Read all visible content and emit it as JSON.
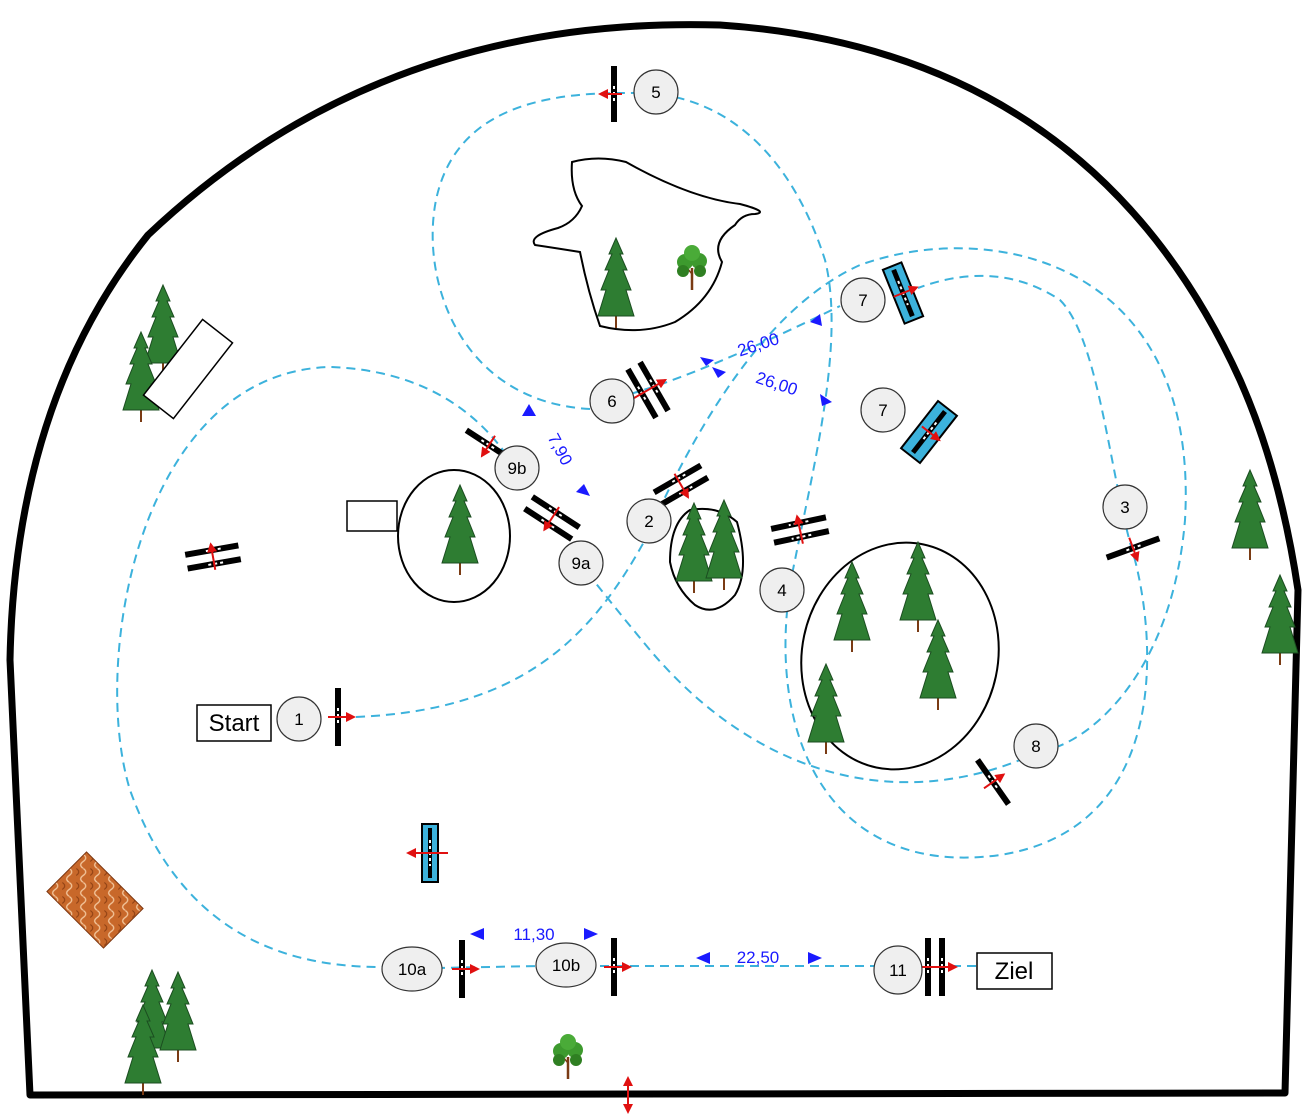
{
  "labels": {
    "start": "Start",
    "finish": "Ziel"
  },
  "obstacles": [
    "1",
    "2",
    "3",
    "4",
    "5",
    "6",
    "7",
    "7",
    "8",
    "9a",
    "9b",
    "10a",
    "10b",
    "11"
  ],
  "distances": [
    "26,00",
    "26,00",
    "7,90",
    "11,30",
    "22,50"
  ],
  "colors": {
    "path": "#3cb2dc",
    "distance_text": "#1a1aff",
    "pole": "#000000",
    "water_jump": "#3cb2dc",
    "arrow": "#e01010",
    "tree": "#2e7d32"
  },
  "icons": [
    "pine-tree-icon",
    "deciduous-tree-icon",
    "direction-arrow-icon",
    "brick-stand-icon"
  ]
}
